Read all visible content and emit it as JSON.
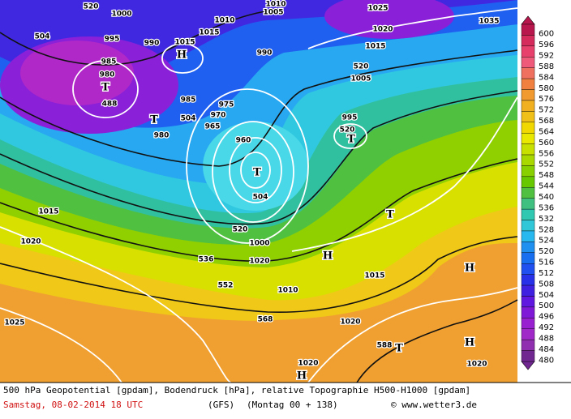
{
  "caption": {
    "line1": "500 hPa Geopotential [gpdam], Bodendruck [hPa], relative Topographie H500-H1000 [gpdam]",
    "date": "Samstag, 08-02-2014  18 UTC",
    "model": "(GFS)",
    "run": "(Montag 00 + 138)",
    "copyright": "© www.wetter3.de"
  },
  "legend": {
    "levels": [
      600,
      596,
      592,
      588,
      584,
      580,
      576,
      572,
      568,
      564,
      560,
      556,
      552,
      548,
      544,
      540,
      536,
      532,
      528,
      524,
      520,
      516,
      512,
      508,
      504,
      500,
      496,
      492,
      488,
      484,
      480
    ],
    "colors": [
      "#b8174e",
      "#d42a5c",
      "#e8406c",
      "#f05a7a",
      "#f07060",
      "#f08040",
      "#f09a30",
      "#f0b020",
      "#f0c018",
      "#f0d800",
      "#e8e800",
      "#c8e000",
      "#a8d800",
      "#88d000",
      "#68c800",
      "#50c040",
      "#40c080",
      "#30c8b0",
      "#30c8d8",
      "#28b8f0",
      "#2090f0",
      "#1870f0",
      "#2050f0",
      "#2830e8",
      "#4020e0",
      "#6018e0",
      "#8018d8",
      "#9820d0",
      "#a028c8",
      "#9030b0",
      "#702890"
    ]
  },
  "map": {
    "labels": [
      "520",
      "1000",
      "504",
      "995",
      "990",
      "1015",
      "1015",
      "1010",
      "1005",
      "1010",
      "1025",
      "1020",
      "1015",
      "1035",
      "990",
      "520",
      "1005",
      "985",
      "980",
      "488",
      "980",
      "504",
      "985",
      "975",
      "970",
      "965",
      "960",
      "995",
      "520",
      "504",
      "520",
      "1000",
      "1020",
      "536",
      "552",
      "1010",
      "1015",
      "568",
      "1020",
      "588",
      "1020",
      "1020",
      "1025",
      "1020",
      "1015"
    ],
    "markers": [
      "H",
      "T",
      "T",
      "T",
      "T",
      "T",
      "H",
      "H",
      "T",
      "H",
      "H"
    ]
  }
}
